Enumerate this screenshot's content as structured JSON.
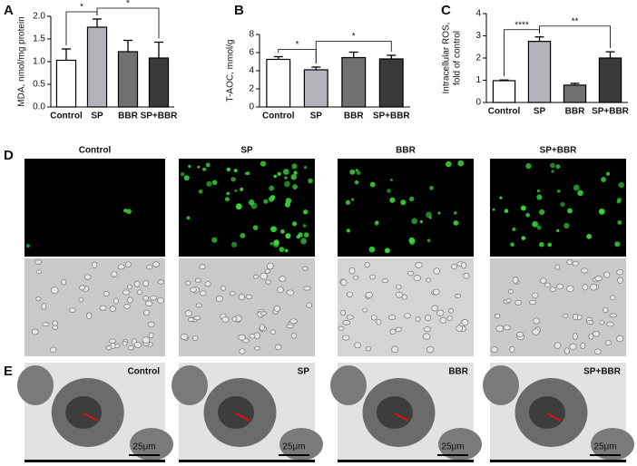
{
  "chart_data": [
    {
      "type": "bar",
      "ylabel": [
        "MDA, nmol/mg protein"
      ],
      "categories": [
        "Control",
        "SP",
        "BBR",
        "SP+BBR"
      ],
      "values": [
        1.03,
        1.76,
        1.22,
        1.08
      ],
      "errors": [
        0.25,
        0.18,
        0.25,
        0.35
      ],
      "colors": [
        "#ffffff",
        "#b3b3bb",
        "#707070",
        "#3a3a3a"
      ],
      "ylim": [
        0,
        2.0
      ],
      "yticks": [
        {
          "value": 0,
          "label": "0.0"
        },
        0.5,
        {
          "value": 1,
          "label": "1.0"
        },
        1.5,
        {
          "value": 2,
          "label": "2.0"
        }
      ],
      "annotations": [
        {
          "text": "*",
          "between": [
            0,
            1
          ]
        },
        {
          "text": "*",
          "between": [
            1,
            3
          ]
        }
      ]
    },
    {
      "type": "bar",
      "ylabel": [
        "T-AOC, mmol/g"
      ],
      "categories": [
        "Control",
        "SP",
        "BBR",
        "SP+BBR"
      ],
      "values": [
        5.25,
        4.1,
        5.45,
        5.3
      ],
      "errors": [
        0.3,
        0.3,
        0.6,
        0.4
      ],
      "colors": [
        "#ffffff",
        "#b3b3bb",
        "#707070",
        "#3a3a3a"
      ],
      "ylim": [
        0,
        8
      ],
      "yticks": [
        0,
        2,
        4,
        6,
        8
      ],
      "annotations": [
        {
          "text": "*",
          "between": [
            0,
            1
          ]
        },
        {
          "text": "*",
          "between": [
            1,
            3
          ]
        }
      ]
    },
    {
      "type": "bar",
      "ylabel": [
        "Intracellular ROS,",
        "fold of control"
      ],
      "categories": [
        "Control",
        "SP",
        "BBR",
        "SP+BBR"
      ],
      "values": [
        0.98,
        2.75,
        0.78,
        2.0
      ],
      "errors": [
        0.03,
        0.2,
        0.08,
        0.28
      ],
      "colors": [
        "#ffffff",
        "#b3b3bb",
        "#707070",
        "#3a3a3a"
      ],
      "ylim": [
        0,
        4
      ],
      "yticks": [
        0,
        1,
        2,
        3,
        4
      ],
      "annotations": [
        {
          "text": "****",
          "between": [
            0,
            1
          ]
        },
        {
          "text": "**",
          "between": [
            1,
            3
          ]
        }
      ]
    }
  ],
  "figure": {
    "panel_letters": [
      "A",
      "B",
      "C",
      "D",
      "E"
    ],
    "image_labels": [
      "Control",
      "SP",
      "BBR",
      "SP+BBR"
    ],
    "em_labels": [
      "Control",
      "SP",
      "BBR",
      "SP+BBR"
    ],
    "scale_bar": "25μm"
  }
}
